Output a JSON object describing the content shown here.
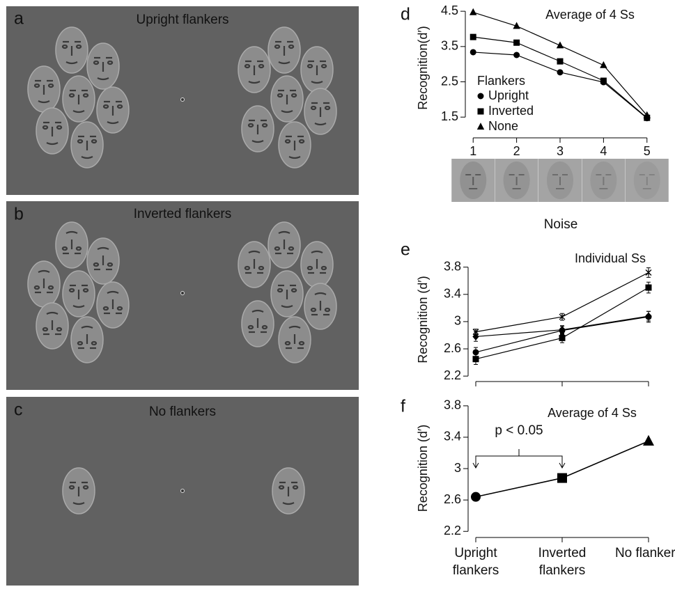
{
  "panels": [
    {
      "label": "a",
      "title": "Upright flankers"
    },
    {
      "label": "b",
      "title": "Inverted flankers"
    },
    {
      "label": "c",
      "title": "No flankers"
    }
  ],
  "chart_data": [
    {
      "type": "line",
      "label": "d",
      "annotation": "Average of 4 Ss",
      "xlabel": "Noise",
      "ylabel": "Recognition(d′)",
      "x": [
        1,
        2,
        3,
        4,
        5
      ],
      "xlim": [
        0.82,
        5.18
      ],
      "xticks": [
        1,
        2,
        3,
        4,
        5
      ],
      "ylim": [
        1.07,
        4.72
      ],
      "yticks": [
        1.5,
        2.5,
        3.5,
        4.5
      ],
      "grid": false,
      "legend_title": "Flankers",
      "series": [
        {
          "name": "Upright",
          "marker": "circle",
          "color": "#000000",
          "values": [
            3.34,
            3.26,
            2.77,
            2.49,
            1.47
          ]
        },
        {
          "name": "Inverted",
          "marker": "square",
          "color": "#000000",
          "values": [
            3.77,
            3.61,
            3.08,
            2.53,
            1.48
          ]
        },
        {
          "name": "None",
          "marker": "triangle",
          "color": "#000000",
          "values": [
            4.47,
            4.08,
            3.53,
            2.97,
            1.55
          ]
        }
      ]
    },
    {
      "type": "line",
      "label": "e",
      "annotation": "Individual Ss",
      "ylabel": "Recognition (d′)",
      "categories": [
        null,
        null,
        null
      ],
      "ylim": [
        2.12,
        3.94
      ],
      "yticks": [
        2.2,
        2.6,
        3,
        3.4,
        3.8
      ],
      "grid": false,
      "series": [
        {
          "marker": "star",
          "color": "#000000",
          "values": [
            2.85,
            3.07,
            3.72
          ],
          "errors": [
            0.04,
            0.05,
            0.07
          ]
        },
        {
          "marker": "diamond",
          "color": "#000000",
          "values": [
            2.78,
            2.88,
            3.08
          ],
          "errors": [
            0.07,
            0.06,
            0.07
          ]
        },
        {
          "marker": "circle",
          "color": "#000000",
          "values": [
            2.55,
            2.87,
            3.07
          ],
          "errors": [
            0.07,
            0.06,
            0.08
          ]
        },
        {
          "marker": "square",
          "color": "#000000",
          "values": [
            2.45,
            2.76,
            3.5
          ],
          "errors": [
            0.08,
            0.07,
            0.08
          ]
        }
      ]
    },
    {
      "type": "line",
      "label": "f",
      "annotation": "Average of 4 Ss",
      "comparison": "p < 0.05",
      "ylabel": "Recognition (d′)",
      "categories": [
        "Upright flankers",
        "Inverted flankers",
        "No flankers"
      ],
      "ylim": [
        2.14,
        3.87
      ],
      "yticks": [
        2.2,
        2.6,
        3,
        3.4,
        3.8
      ],
      "grid": false,
      "series": [
        {
          "markers": [
            "circle",
            "square",
            "triangle"
          ],
          "color": "#000000",
          "values": [
            2.64,
            2.88,
            3.35
          ]
        }
      ]
    }
  ]
}
